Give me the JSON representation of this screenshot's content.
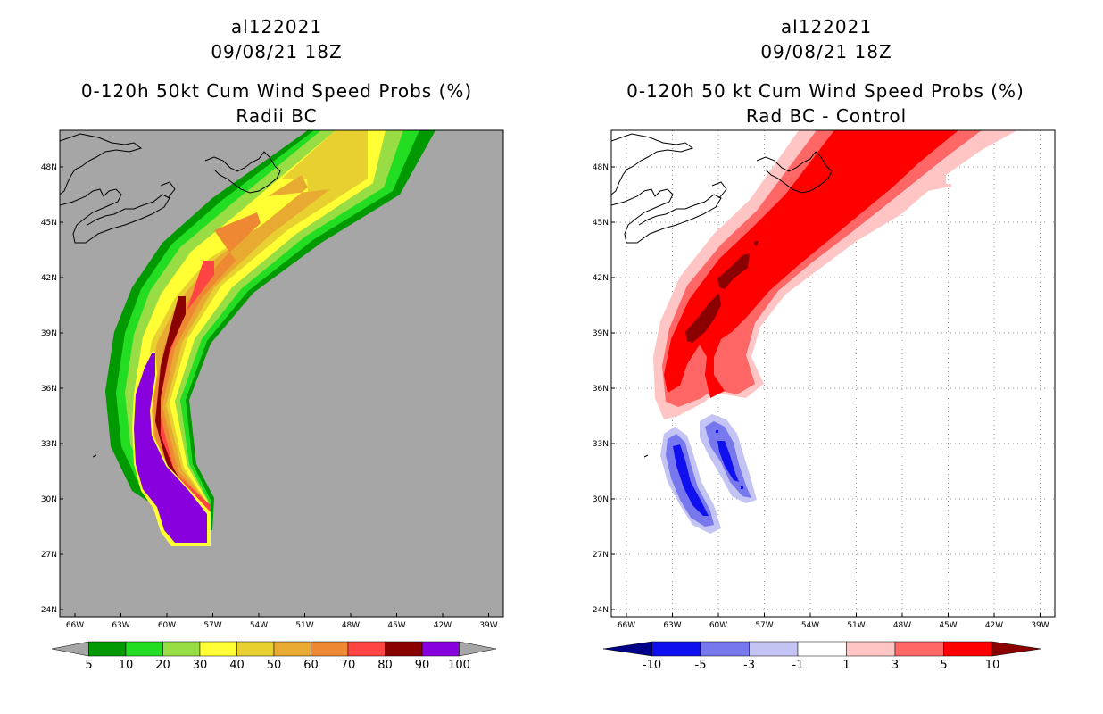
{
  "left_panel": {
    "storm_id": "al122021",
    "datetime": "09/08/21 18Z",
    "title": "0-120h 50kt Cum Wind Speed Probs (%)",
    "subtitle": "Radii BC",
    "land_color": "#a6a6a6",
    "colorbar": {
      "colors": [
        "#a6a6a6",
        "#009900",
        "#22dd22",
        "#99dd44",
        "#ffff33",
        "#e8d030",
        "#e8aa30",
        "#ee8833",
        "#ff4444",
        "#8b0000",
        "#8800dd",
        "#a6a6a6"
      ],
      "labels": [
        "5",
        "10",
        "20",
        "30",
        "40",
        "50",
        "60",
        "70",
        "80",
        "90",
        "100"
      ]
    }
  },
  "right_panel": {
    "storm_id": "al122021",
    "datetime": "09/08/21 18Z",
    "title": "0-120h 50 kt Cum Wind Speed Probs (%)",
    "subtitle": "Rad BC - Control",
    "colorbar": {
      "colors": [
        "#000088",
        "#1010ee",
        "#7777ee",
        "#c4c4f4",
        "#ffffff",
        "#ffc4c4",
        "#ff6666",
        "#ff0000",
        "#8b0000"
      ],
      "labels": [
        "-10",
        "-5",
        "-3",
        "-1",
        "1",
        "3",
        "5",
        "10"
      ]
    }
  },
  "axes": {
    "lat_labels": [
      "48N",
      "45N",
      "42N",
      "39N",
      "36N",
      "33N",
      "30N",
      "27N",
      "24N"
    ],
    "lon_labels": [
      "66W",
      "63W",
      "60W",
      "57W",
      "54W",
      "51W",
      "48W",
      "45W",
      "42W",
      "39W"
    ]
  }
}
